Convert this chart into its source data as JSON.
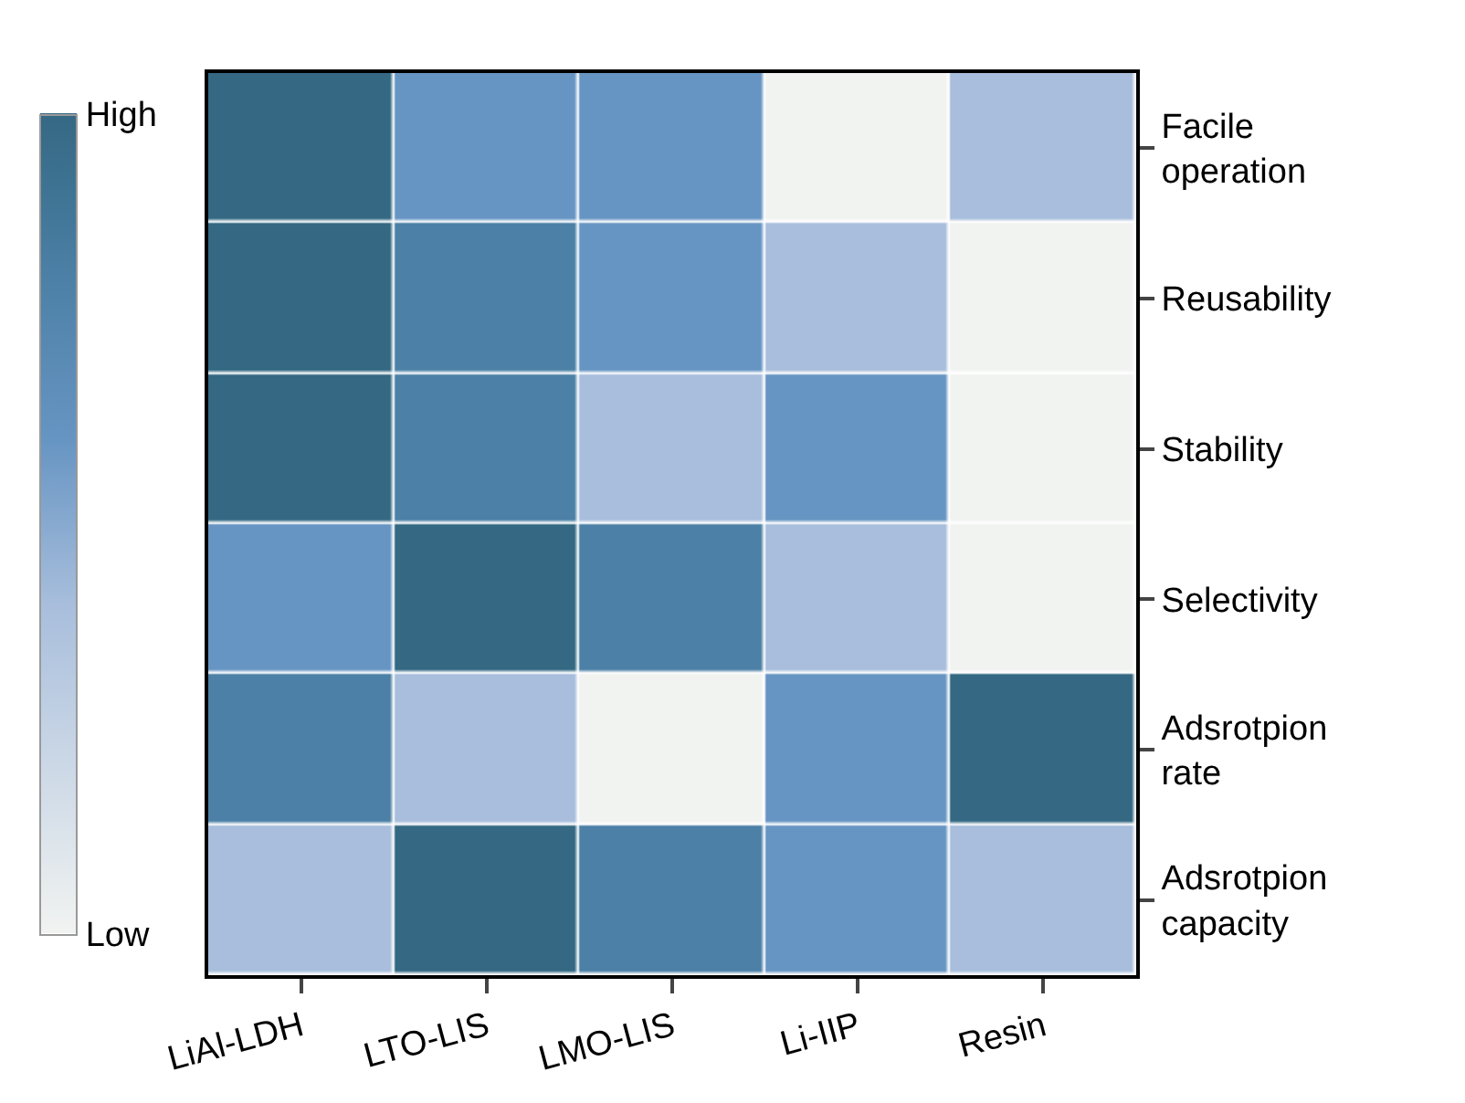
{
  "chart_data": {
    "type": "heatmap",
    "categories": [
      "LiAl-LDH",
      "LTO-LIS",
      "LMO-LIS",
      "Li-IIP",
      "Resin"
    ],
    "y_categories": [
      "Facile operation",
      "Reusability",
      "Stability",
      "Selectivity",
      "Adsrotpion rate",
      "Adsrotpion capacity"
    ],
    "cells": [
      [
        1.0,
        0.6,
        0.6,
        0.0,
        0.4
      ],
      [
        1.0,
        0.8,
        0.6,
        0.4,
        0.0
      ],
      [
        1.0,
        0.8,
        0.4,
        0.6,
        0.0
      ],
      [
        0.6,
        1.0,
        0.8,
        0.4,
        0.0
      ],
      [
        0.8,
        0.4,
        0.0,
        0.6,
        1.0
      ],
      [
        0.4,
        1.0,
        0.8,
        0.6,
        0.4
      ]
    ],
    "clim": [
      0,
      1
    ],
    "cticks": [
      {
        "value": 0,
        "label": "Low"
      },
      {
        "value": 1,
        "label": "High"
      }
    ]
  }
}
